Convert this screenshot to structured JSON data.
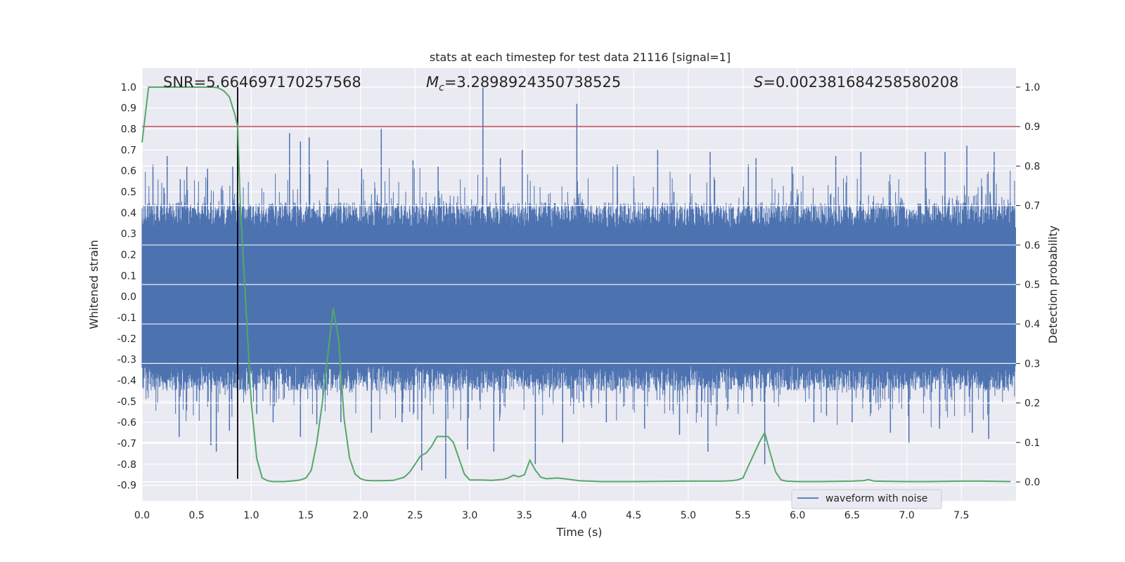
{
  "chart_data": {
    "type": "line",
    "title": "stats at each timestep for test data 21116 [signal=1]",
    "xlabel": "Time (s)",
    "ylabel": "Whitened strain",
    "y2label": "Detection probability",
    "xlim": [
      0.0,
      8.0
    ],
    "ylim": [
      -0.975,
      1.09
    ],
    "y2lim": [
      -0.048,
      1.048
    ],
    "x_ticks": [
      "0.0",
      "0.5",
      "1.0",
      "1.5",
      "2.0",
      "2.5",
      "3.0",
      "3.5",
      "4.0",
      "4.5",
      "5.0",
      "5.5",
      "6.0",
      "6.5",
      "7.0",
      "7.5"
    ],
    "y_ticks": [
      "1.0",
      "0.9",
      "0.8",
      "0.7",
      "0.6",
      "0.5",
      "0.4",
      "0.3",
      "0.2",
      "0.1",
      "0.0",
      "-0.1",
      "-0.2",
      "-0.3",
      "-0.4",
      "-0.5",
      "-0.6",
      "-0.7",
      "-0.8",
      "-0.9"
    ],
    "y2_ticks": [
      "1.0",
      "0.9",
      "0.8",
      "0.7",
      "0.6",
      "0.5",
      "0.4",
      "0.3",
      "0.2",
      "0.1",
      "0.0"
    ],
    "grid": true,
    "legend_position": "lower-right",
    "annotations": {
      "snr": "SNR=5.664697170257568",
      "mc_symbol": "M",
      "mc_sub": "c",
      "mc_value": "=3.2898924350738525",
      "s_symbol": "S",
      "s_value": "=0.002381684258580208"
    },
    "threshold": {
      "y2": 0.9,
      "color": "#c44e52"
    },
    "marker_line": {
      "x": 0.875,
      "y_from": -0.87,
      "y_to": 1.0,
      "color": "#000000"
    },
    "series": [
      {
        "name": "waveform with noise",
        "axis": "left",
        "color": "#4c72b0",
        "kind": "noise-envelope",
        "base_amplitude": 0.33,
        "spikes": [
          {
            "x": 0.05,
            "y": 0.44
          },
          {
            "x": 0.1,
            "y": 0.63
          },
          {
            "x": 0.2,
            "y": 0.52
          },
          {
            "x": 0.23,
            "y": 0.67
          },
          {
            "x": 0.35,
            "y": 0.56
          },
          {
            "x": 0.41,
            "y": 0.62
          },
          {
            "x": 0.6,
            "y": 0.61
          },
          {
            "x": 0.83,
            "y": 0.62
          },
          {
            "x": 1.35,
            "y": 0.78
          },
          {
            "x": 1.45,
            "y": 0.74
          },
          {
            "x": 1.53,
            "y": 0.76
          },
          {
            "x": 1.7,
            "y": 0.65
          },
          {
            "x": 2.01,
            "y": 0.61
          },
          {
            "x": 2.19,
            "y": 0.8
          },
          {
            "x": 2.48,
            "y": 0.65
          },
          {
            "x": 2.71,
            "y": 0.62
          },
          {
            "x": 3.12,
            "y": 1.0
          },
          {
            "x": 3.28,
            "y": 0.66
          },
          {
            "x": 3.48,
            "y": 0.7
          },
          {
            "x": 3.98,
            "y": 0.92
          },
          {
            "x": 4.35,
            "y": 0.63
          },
          {
            "x": 4.72,
            "y": 0.7
          },
          {
            "x": 5.2,
            "y": 0.69
          },
          {
            "x": 5.55,
            "y": 0.63
          },
          {
            "x": 5.62,
            "y": 0.66
          },
          {
            "x": 5.95,
            "y": 0.62
          },
          {
            "x": 6.35,
            "y": 0.67
          },
          {
            "x": 6.58,
            "y": 0.69
          },
          {
            "x": 7.17,
            "y": 0.69
          },
          {
            "x": 7.35,
            "y": 0.69
          },
          {
            "x": 7.55,
            "y": 0.72
          },
          {
            "x": 7.8,
            "y": 0.69
          },
          {
            "x": 0.34,
            "y": -0.67
          },
          {
            "x": 0.5,
            "y": -0.5
          },
          {
            "x": 0.63,
            "y": -0.71
          },
          {
            "x": 0.68,
            "y": -0.74
          },
          {
            "x": 0.8,
            "y": -0.64
          },
          {
            "x": 1.05,
            "y": -0.56
          },
          {
            "x": 1.2,
            "y": -0.6
          },
          {
            "x": 1.45,
            "y": -0.67
          },
          {
            "x": 1.6,
            "y": -0.61
          },
          {
            "x": 1.82,
            "y": -0.6
          },
          {
            "x": 2.1,
            "y": -0.65
          },
          {
            "x": 2.38,
            "y": -0.6
          },
          {
            "x": 2.56,
            "y": -0.83
          },
          {
            "x": 2.78,
            "y": -0.87
          },
          {
            "x": 2.98,
            "y": -0.73
          },
          {
            "x": 3.22,
            "y": -0.74
          },
          {
            "x": 3.6,
            "y": -0.8
          },
          {
            "x": 3.85,
            "y": -0.7
          },
          {
            "x": 4.25,
            "y": -0.6
          },
          {
            "x": 4.6,
            "y": -0.63
          },
          {
            "x": 4.92,
            "y": -0.66
          },
          {
            "x": 5.18,
            "y": -0.74
          },
          {
            "x": 5.7,
            "y": -0.8
          },
          {
            "x": 6.15,
            "y": -0.6
          },
          {
            "x": 6.5,
            "y": -0.6
          },
          {
            "x": 6.85,
            "y": -0.65
          },
          {
            "x": 7.02,
            "y": -0.7
          },
          {
            "x": 7.3,
            "y": -0.63
          },
          {
            "x": 7.6,
            "y": -0.65
          },
          {
            "x": 7.75,
            "y": -0.68
          }
        ]
      },
      {
        "name": "",
        "axis": "right",
        "color": "#55a868",
        "x": [
          0.0,
          0.06,
          0.12,
          0.2,
          0.3,
          0.4,
          0.5,
          0.6,
          0.65,
          0.7,
          0.75,
          0.8,
          0.85,
          0.875,
          0.9,
          0.95,
          1.0,
          1.05,
          1.1,
          1.15,
          1.2,
          1.3,
          1.4,
          1.45,
          1.5,
          1.55,
          1.6,
          1.65,
          1.7,
          1.75,
          1.8,
          1.85,
          1.9,
          1.95,
          2.0,
          2.05,
          2.1,
          2.2,
          2.3,
          2.4,
          2.45,
          2.5,
          2.55,
          2.6,
          2.65,
          2.7,
          2.8,
          2.85,
          2.9,
          2.95,
          3.0,
          3.1,
          3.2,
          3.3,
          3.35,
          3.4,
          3.45,
          3.5,
          3.55,
          3.6,
          3.65,
          3.7,
          3.8,
          3.9,
          4.0,
          4.1,
          4.2,
          4.5,
          5.0,
          5.3,
          5.4,
          5.45,
          5.5,
          5.55,
          5.6,
          5.65,
          5.7,
          5.75,
          5.8,
          5.85,
          5.9,
          6.0,
          6.2,
          6.5,
          6.6,
          6.65,
          6.7,
          7.0,
          7.2,
          7.5,
          7.7,
          7.95
        ],
        "values": [
          0.86,
          1.0,
          1.0,
          1.0,
          1.0,
          1.0,
          1.0,
          1.0,
          1.0,
          0.998,
          0.99,
          0.975,
          0.93,
          0.9,
          0.7,
          0.45,
          0.2,
          0.06,
          0.01,
          0.003,
          0.001,
          0.001,
          0.003,
          0.005,
          0.01,
          0.03,
          0.1,
          0.2,
          0.32,
          0.44,
          0.36,
          0.16,
          0.06,
          0.02,
          0.008,
          0.004,
          0.003,
          0.003,
          0.004,
          0.012,
          0.025,
          0.045,
          0.066,
          0.073,
          0.09,
          0.115,
          0.115,
          0.1,
          0.06,
          0.02,
          0.005,
          0.005,
          0.004,
          0.006,
          0.01,
          0.017,
          0.013,
          0.018,
          0.055,
          0.03,
          0.012,
          0.008,
          0.01,
          0.007,
          0.003,
          0.002,
          0.001,
          0.001,
          0.002,
          0.002,
          0.003,
          0.005,
          0.01,
          0.04,
          0.07,
          0.1,
          0.125,
          0.073,
          0.025,
          0.005,
          0.002,
          0.001,
          0.001,
          0.002,
          0.003,
          0.006,
          0.002,
          0.001,
          0.001,
          0.002,
          0.002,
          0.001
        ]
      }
    ]
  }
}
